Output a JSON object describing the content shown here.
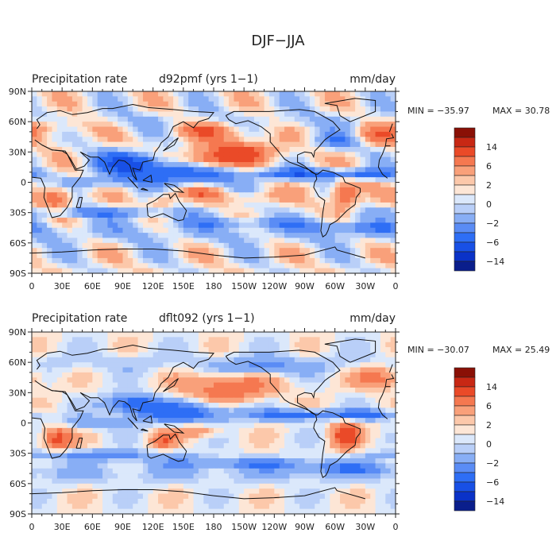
{
  "figure_title": "DJF−JJA",
  "colors": {
    "land": "#f7efe6",
    "ocean": "#fbfbfb",
    "coast": "#111111",
    "frame": "#222222",
    "text": "#222222"
  },
  "chart_data": [
    {
      "type": "heatmap",
      "title": "Precipitation rate",
      "dataset": "d92pmf (yrs 1−1)",
      "units": "mm/day",
      "min_label": "MIN = −35.97",
      "max_label": "MAX =  30.78",
      "min": -35.97,
      "max": 30.78,
      "x_ticks": [
        "0",
        "30E",
        "60E",
        "90E",
        "120E",
        "150E",
        "180",
        "150W",
        "120W",
        "90W",
        "60W",
        "30W",
        "0"
      ],
      "y_ticks": [
        "90N",
        "60N",
        "30N",
        "0",
        "30S",
        "60S",
        "90S"
      ],
      "legend_labels": [
        "14",
        "6",
        "2",
        "0",
        "−2",
        "−6",
        "−14"
      ],
      "levels": [
        -20,
        -14,
        -10,
        -6,
        -4,
        -2,
        -1,
        0,
        1,
        2,
        4,
        6,
        10,
        14,
        20
      ],
      "palette": [
        "#0a1e8c",
        "#0a32c8",
        "#1850e6",
        "#2e6ef5",
        "#5a8cf5",
        "#88aef5",
        "#b9cff8",
        "#dbe8fb",
        "#fde6d6",
        "#fcc8aa",
        "#f9a07a",
        "#f57850",
        "#ea4a28",
        "#c82814",
        "#8a1006"
      ],
      "regions": [
        {
          "lon": 145,
          "lat": 10,
          "rlon": 55,
          "rlat": 12,
          "v": -10
        },
        {
          "lon": 95,
          "lat": 20,
          "rlon": 28,
          "rlat": 10,
          "v": -10
        },
        {
          "lon": 170,
          "lat": 20,
          "rlon": 30,
          "rlat": 10,
          "v": 8
        },
        {
          "lon": 210,
          "lat": 30,
          "rlon": 45,
          "rlat": 12,
          "v": 6
        },
        {
          "lon": 180,
          "lat": 52,
          "rlon": 40,
          "rlat": 9,
          "v": 5
        },
        {
          "lon": 260,
          "lat": 8,
          "rlon": 40,
          "rlat": 5,
          "v": -9
        },
        {
          "lon": 330,
          "lat": 8,
          "rlon": 35,
          "rlat": 5,
          "v": -8
        },
        {
          "lon": 20,
          "lat": 55,
          "rlon": 40,
          "rlat": 10,
          "v": 4
        },
        {
          "lon": 25,
          "lat": -15,
          "rlon": 15,
          "rlat": 12,
          "v": 7
        },
        {
          "lon": 310,
          "lat": -12,
          "rlon": 14,
          "rlat": 14,
          "v": 8
        },
        {
          "lon": 130,
          "lat": -18,
          "rlon": 14,
          "rlat": 9,
          "v": 4
        },
        {
          "lon": 165,
          "lat": -10,
          "rlon": 25,
          "rlat": 6,
          "v": 4
        },
        {
          "lon": 220,
          "lat": -15,
          "rlon": 30,
          "rlat": 6,
          "v": 3
        },
        {
          "lon": 70,
          "lat": -30,
          "rlon": 90,
          "rlat": 5,
          "v": -5
        },
        {
          "lon": 210,
          "lat": -40,
          "rlon": 80,
          "rlat": 5,
          "v": -4
        },
        {
          "lon": 320,
          "lat": -45,
          "rlon": 50,
          "rlat": 6,
          "v": -4
        },
        {
          "lon": 300,
          "lat": 40,
          "rlon": 25,
          "rlat": 8,
          "v": -5
        },
        {
          "lon": 340,
          "lat": 45,
          "rlon": 20,
          "rlat": 10,
          "v": 4
        },
        {
          "lon": 60,
          "lat": 0,
          "rlon": 35,
          "rlat": 6,
          "v": -4
        }
      ]
    },
    {
      "type": "heatmap",
      "title": "Precipitation rate",
      "dataset": "dflt092 (yrs 1−1)",
      "units": "mm/day",
      "min_label": "MIN = −30.07",
      "max_label": "MAX =  25.49",
      "min": -30.07,
      "max": 25.49,
      "x_ticks": [
        "0",
        "30E",
        "60E",
        "90E",
        "120E",
        "150E",
        "180",
        "150W",
        "120W",
        "90W",
        "60W",
        "30W",
        "0"
      ],
      "y_ticks": [
        "90N",
        "60N",
        "30N",
        "0",
        "30S",
        "60S",
        "90S"
      ],
      "legend_labels": [
        "14",
        "6",
        "2",
        "0",
        "−2",
        "−6",
        "−14"
      ],
      "levels": [
        -20,
        -14,
        -10,
        -6,
        -4,
        -2,
        -1,
        0,
        1,
        2,
        4,
        6,
        10,
        14,
        20
      ],
      "palette": [
        "#0a1e8c",
        "#0a32c8",
        "#1850e6",
        "#2e6ef5",
        "#5a8cf5",
        "#88aef5",
        "#b9cff8",
        "#dbe8fb",
        "#fde6d6",
        "#fcc8aa",
        "#f9a07a",
        "#f57850",
        "#ea4a28",
        "#c82814",
        "#8a1006"
      ],
      "regions": [
        {
          "lon": 150,
          "lat": 10,
          "rlon": 50,
          "rlat": 10,
          "v": -8
        },
        {
          "lon": 100,
          "lat": 20,
          "rlon": 25,
          "rlat": 9,
          "v": -8
        },
        {
          "lon": 195,
          "lat": 35,
          "rlon": 45,
          "rlat": 14,
          "v": 6
        },
        {
          "lon": 260,
          "lat": 8,
          "rlon": 40,
          "rlat": 5,
          "v": -8
        },
        {
          "lon": 330,
          "lat": 8,
          "rlon": 35,
          "rlat": 5,
          "v": -7
        },
        {
          "lon": 345,
          "lat": 45,
          "rlon": 25,
          "rlat": 12,
          "v": 5
        },
        {
          "lon": 25,
          "lat": -15,
          "rlon": 15,
          "rlat": 12,
          "v": 7
        },
        {
          "lon": 310,
          "lat": -12,
          "rlon": 14,
          "rlat": 14,
          "v": 8
        },
        {
          "lon": 130,
          "lat": -18,
          "rlon": 14,
          "rlat": 9,
          "v": 5
        },
        {
          "lon": 165,
          "lat": -8,
          "rlon": 25,
          "rlat": 6,
          "v": 4
        },
        {
          "lon": 70,
          "lat": -32,
          "rlon": 90,
          "rlat": 5,
          "v": -5
        },
        {
          "lon": 210,
          "lat": -40,
          "rlon": 80,
          "rlat": 5,
          "v": -5
        },
        {
          "lon": 310,
          "lat": -45,
          "rlon": 50,
          "rlat": 6,
          "v": -4
        },
        {
          "lon": 230,
          "lat": 55,
          "rlon": 40,
          "rlat": 8,
          "v": -4
        },
        {
          "lon": 60,
          "lat": 0,
          "rlon": 35,
          "rlat": 6,
          "v": -4
        }
      ]
    }
  ]
}
